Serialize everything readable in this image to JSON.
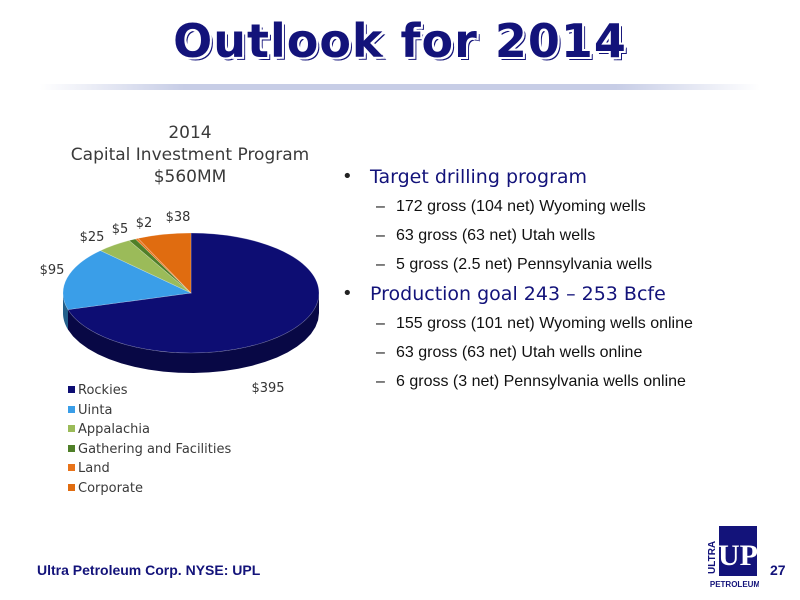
{
  "slide": {
    "title": "Outlook for 2014",
    "footer": "Ultra Petroleum Corp. NYSE: UPL",
    "page_number": "27",
    "logo": {
      "letters": "UP",
      "vertical_text": "ULTRA",
      "bottom_text": "PETROLEUM"
    }
  },
  "chart_data": {
    "type": "pie",
    "title_lines": [
      "2014",
      "Capital Investment Program",
      "$560MM"
    ],
    "categories": [
      "Rockies",
      "Uinta",
      "Appalachia",
      "Gathering and Facilities",
      "Land",
      "Corporate"
    ],
    "values": [
      395,
      95,
      25,
      5,
      2,
      38
    ],
    "data_labels": [
      "$395",
      "$95",
      "$25",
      "$5",
      "$2",
      "$38"
    ],
    "colors": [
      "#0d0d73",
      "#3a9ee8",
      "#9bbb59",
      "#4f7f28",
      "#e8731a",
      "#e06c10"
    ],
    "legend_position": "bottom",
    "style": "3d"
  },
  "bullets": [
    {
      "heading": "Target drilling program",
      "items": [
        "172 gross (104 net) Wyoming wells",
        "63 gross (63 net) Utah wells",
        "5 gross (2.5 net) Pennsylvania wells"
      ]
    },
    {
      "heading": "Production goal 243 – 253 Bcfe",
      "items": [
        "155 gross (101 net) Wyoming wells online",
        "63 gross (63 net) Utah wells online",
        "6 gross (3 net) Pennsylvania wells online"
      ]
    }
  ],
  "symbols": {
    "bullet": "•",
    "dash": "–"
  }
}
